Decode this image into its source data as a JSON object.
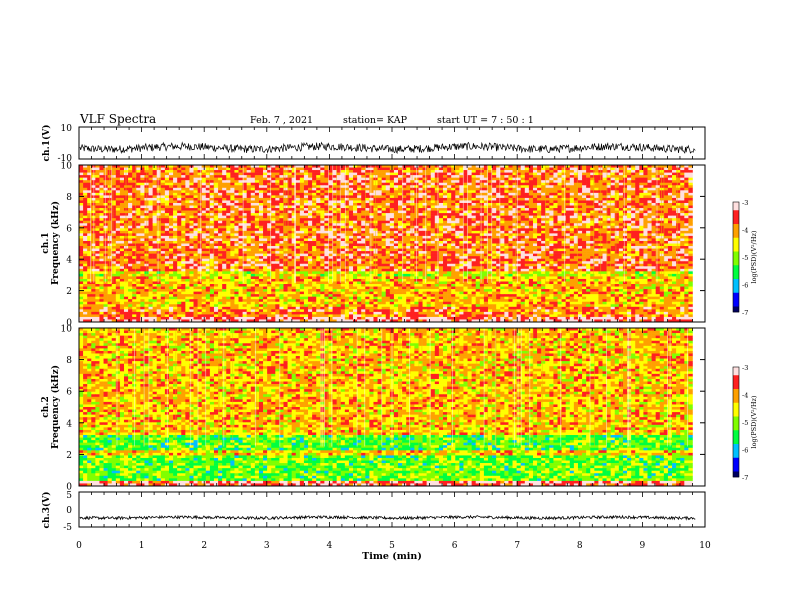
{
  "header": {
    "title": "VLF Spectra",
    "date": "Feb. 7 , 2021",
    "station": "station= KAP",
    "start": "start UT = 7 : 50 : 1"
  },
  "colors": {
    "spectrogram_scale": [
      "#000060",
      "#0000ff",
      "#00c0ff",
      "#00ff40",
      "#80ff00",
      "#ffff00",
      "#ffa000",
      "#ff2020",
      "#ffe0e0"
    ]
  },
  "chart_data": [
    {
      "type": "line",
      "panel": "ch1-waveform",
      "ylabel": "ch.1(V)",
      "ylim": [
        -10,
        10
      ],
      "yticks": [
        "10",
        "-10"
      ],
      "xlim": [
        0,
        10
      ],
      "baseline": -3,
      "noise_amplitude": 2.5
    },
    {
      "type": "heatmap",
      "panel": "ch1-spectrogram",
      "ylabel": "ch.1\nFrequency (kHz)",
      "ylim": [
        0,
        10
      ],
      "yticks": [
        "0",
        "2",
        "4",
        "6",
        "8",
        "10"
      ],
      "xlim": [
        0,
        10
      ],
      "data_end_min": 9.8,
      "colorbar": {
        "label": "log(PSD)(V²/Hz)",
        "range": [
          -7,
          -3
        ],
        "ticks": [
          "-3",
          "-4",
          "-5",
          "-6",
          "-7"
        ]
      },
      "bands": [
        {
          "f_from": 0.0,
          "f_to": 0.35,
          "level": -3.2
        },
        {
          "f_from": 0.35,
          "f_to": 1.0,
          "level": -3.8
        },
        {
          "f_from": 1.0,
          "f_to": 2.9,
          "level": -4.2
        },
        {
          "f_from": 2.9,
          "f_to": 3.3,
          "level": -4.6
        },
        {
          "f_from": 3.3,
          "f_to": 10.0,
          "level": -3.7
        }
      ]
    },
    {
      "type": "heatmap",
      "panel": "ch2-spectrogram",
      "ylabel": "ch.2\nFrequency (kHz)",
      "ylim": [
        0,
        10
      ],
      "yticks": [
        "0",
        "2",
        "4",
        "6",
        "8",
        "10"
      ],
      "xlim": [
        0,
        10
      ],
      "data_end_min": 9.8,
      "colorbar": {
        "label": "log(PSD)(V²/Hz)",
        "range": [
          -7,
          -3
        ],
        "ticks": [
          "-3",
          "-4",
          "-5",
          "-6",
          "-7"
        ]
      },
      "bands": [
        {
          "f_from": 0.0,
          "f_to": 0.35,
          "level": -3.3
        },
        {
          "f_from": 0.35,
          "f_to": 1.9,
          "level": -5.1
        },
        {
          "f_from": 1.9,
          "f_to": 2.3,
          "level": -4.3
        },
        {
          "f_from": 2.3,
          "f_to": 3.2,
          "level": -5.2
        },
        {
          "f_from": 3.2,
          "f_to": 10.0,
          "level": -4.2
        }
      ]
    },
    {
      "type": "line",
      "panel": "ch3-waveform",
      "ylabel": "ch.3(V)",
      "ylim": [
        -5,
        5
      ],
      "yticks": [
        "5",
        "0",
        "-5"
      ],
      "xlim": [
        0,
        10
      ],
      "xticks": [
        "0",
        "1",
        "2",
        "3",
        "4",
        "5",
        "6",
        "7",
        "8",
        "9",
        "10"
      ],
      "xlabel": "Time (min)",
      "baseline": -2.3,
      "noise_amplitude": 0.4
    }
  ]
}
